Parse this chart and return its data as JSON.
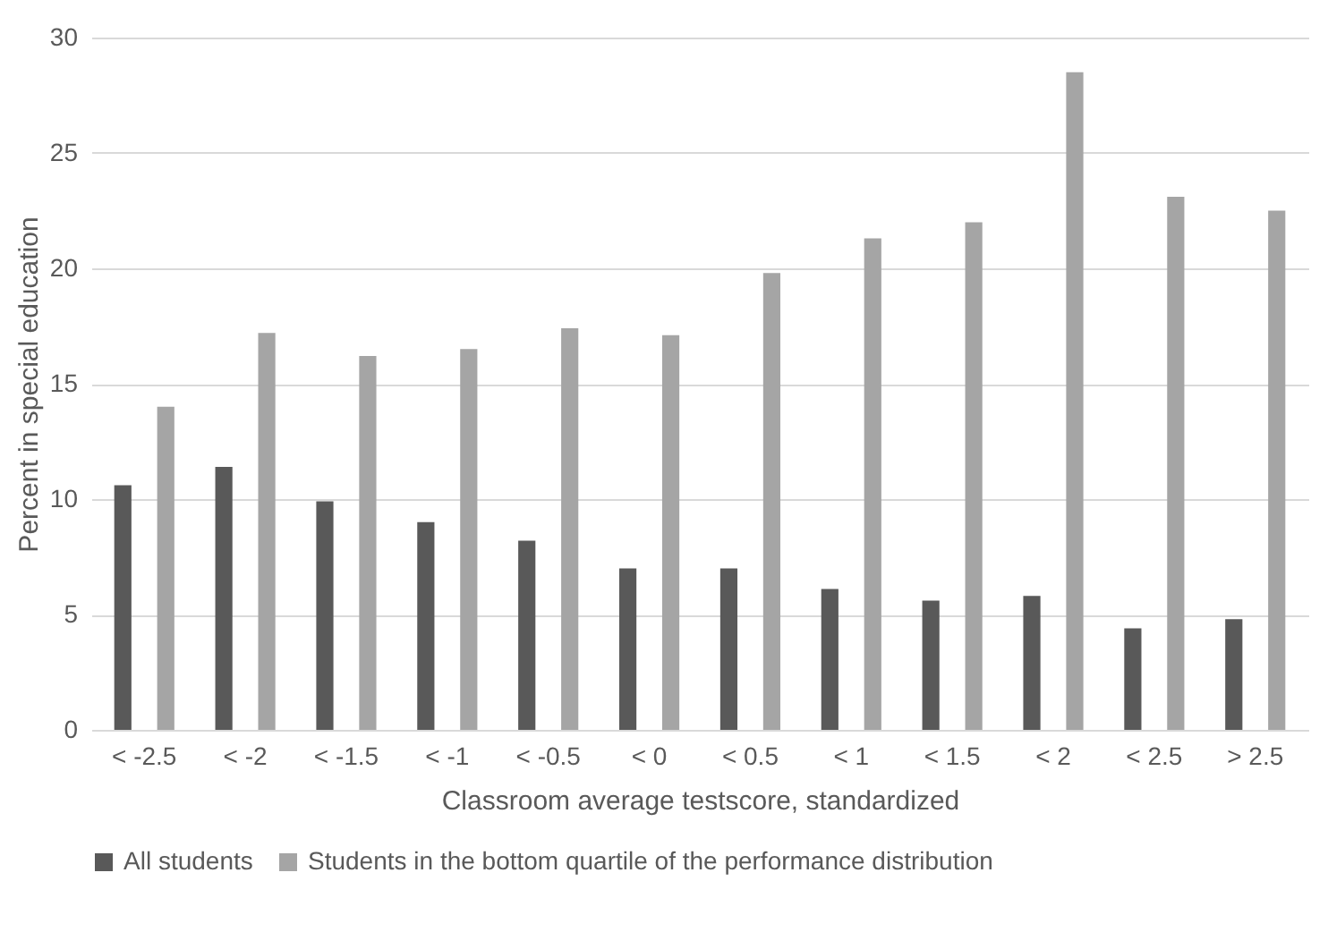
{
  "chart_data": {
    "type": "bar",
    "xlabel": "Classroom average testscore, standardized",
    "ylabel": "Percent in special education",
    "categories": [
      "< -2.5",
      "< -2",
      "< -1.5",
      "< -1",
      "< -0.5",
      "< 0",
      "< 0.5",
      "< 1",
      "< 1.5",
      "< 2",
      "< 2.5",
      "> 2.5"
    ],
    "series": [
      {
        "name": "All students",
        "color": "#595959",
        "values": [
          10.6,
          11.4,
          9.9,
          9.0,
          8.2,
          7.0,
          7.0,
          6.1,
          5.6,
          5.8,
          4.4,
          4.8
        ]
      },
      {
        "name": "Students in the bottom quartile of the performance distribution",
        "color": "#a5a5a5",
        "values": [
          14.0,
          17.2,
          16.2,
          16.5,
          17.4,
          17.1,
          19.8,
          21.3,
          22.0,
          28.5,
          23.1,
          22.5
        ]
      }
    ],
    "ylim": [
      0,
      30
    ],
    "yticks": [
      0,
      5,
      10,
      15,
      20,
      25,
      30
    ],
    "grid": "y",
    "legend": "bottom"
  }
}
